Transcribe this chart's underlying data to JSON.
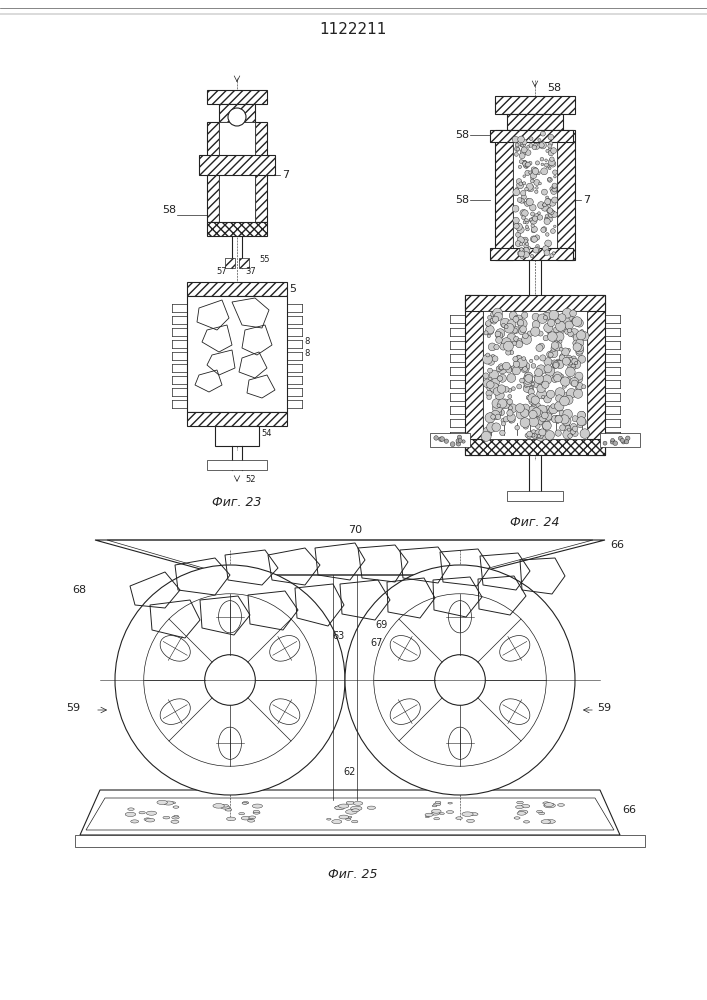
{
  "title": "1122211",
  "title_fontsize": 11,
  "fig_width": 7.07,
  "fig_height": 10.0,
  "bg_color": "#ffffff",
  "line_color": "#222222",
  "fig23_label": "Фиг. 23",
  "fig24_label": "Фиг. 24",
  "fig25_label": "Фиг. 25",
  "label_fontsize": 9,
  "number_fontsize": 8
}
